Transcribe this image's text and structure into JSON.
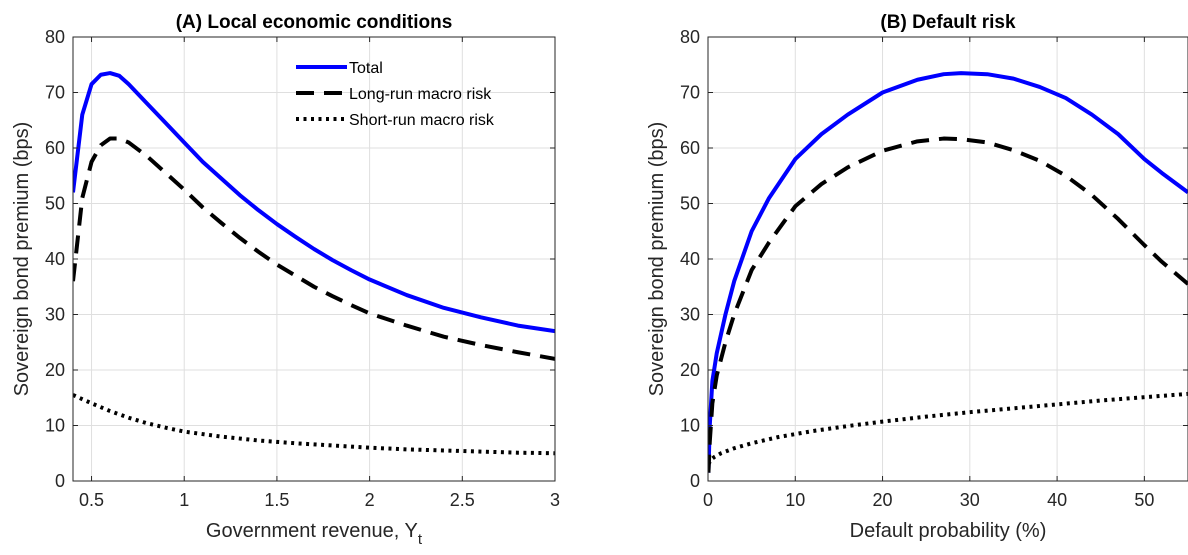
{
  "chart_data": [
    {
      "type": "line",
      "title": "(A) Local economic conditions",
      "xlabel": "Government revenue, Y",
      "xlabel_sub": "t",
      "ylabel": "Sovereign bond premium (bps)",
      "xlim": [
        0.4,
        3.0
      ],
      "ylim": [
        0,
        80
      ],
      "xticks": [
        0.5,
        1,
        1.5,
        2,
        2.5,
        3
      ],
      "xtick_labels": [
        "0.5",
        "1",
        "1.5",
        "2",
        "2.5",
        "3"
      ],
      "yticks": [
        0,
        10,
        20,
        30,
        40,
        50,
        60,
        70,
        80
      ],
      "ytick_labels": [
        "0",
        "10",
        "20",
        "30",
        "40",
        "50",
        "60",
        "70",
        "80"
      ],
      "grid": true,
      "legend": "top-right",
      "series": [
        {
          "name": "Total",
          "color": "#0000ff",
          "style": "solid",
          "x": [
            0.4,
            0.45,
            0.5,
            0.55,
            0.6,
            0.65,
            0.7,
            0.8,
            0.9,
            1.0,
            1.1,
            1.2,
            1.3,
            1.4,
            1.5,
            1.6,
            1.7,
            1.8,
            1.9,
            2.0,
            2.2,
            2.4,
            2.6,
            2.8,
            3.0
          ],
          "y": [
            52,
            66,
            71.5,
            73.2,
            73.5,
            73.0,
            71.5,
            68,
            64.5,
            61,
            57.5,
            54.5,
            51.5,
            48.8,
            46.3,
            44.0,
            41.8,
            39.8,
            38.0,
            36.3,
            33.5,
            31.2,
            29.5,
            28.0,
            27.0
          ]
        },
        {
          "name": "Long-run macro risk",
          "color": "#000000",
          "style": "dashed",
          "x": [
            0.4,
            0.45,
            0.5,
            0.55,
            0.6,
            0.65,
            0.7,
            0.8,
            0.9,
            1.0,
            1.1,
            1.2,
            1.3,
            1.4,
            1.5,
            1.6,
            1.7,
            1.8,
            1.9,
            2.0,
            2.2,
            2.4,
            2.6,
            2.8,
            3.0
          ],
          "y": [
            36,
            51,
            57.5,
            60.5,
            61.7,
            61.7,
            61.0,
            58.5,
            55.5,
            52.5,
            49.3,
            46.5,
            43.8,
            41.3,
            39.0,
            37.0,
            35.0,
            33.3,
            31.7,
            30.2,
            28.0,
            26.0,
            24.5,
            23.2,
            22.0
          ]
        },
        {
          "name": "Short-run macro risk",
          "color": "#000000",
          "style": "dotted",
          "x": [
            0.4,
            0.5,
            0.6,
            0.7,
            0.8,
            0.9,
            1.0,
            1.2,
            1.4,
            1.6,
            1.8,
            2.0,
            2.2,
            2.4,
            2.6,
            2.8,
            3.0
          ],
          "y": [
            15.5,
            14.0,
            12.6,
            11.4,
            10.4,
            9.6,
            8.9,
            8.0,
            7.3,
            6.8,
            6.4,
            6.0,
            5.7,
            5.5,
            5.3,
            5.1,
            5.0
          ]
        }
      ]
    },
    {
      "type": "line",
      "title": "(B) Default risk",
      "xlabel": "Default probability (%)",
      "ylabel": "Sovereign bond premium (bps)",
      "xlim": [
        0,
        55
      ],
      "ylim": [
        0,
        80
      ],
      "xticks": [
        0,
        10,
        20,
        30,
        40,
        50
      ],
      "xtick_labels": [
        "0",
        "10",
        "20",
        "30",
        "40",
        "50"
      ],
      "yticks": [
        0,
        10,
        20,
        30,
        40,
        50,
        60,
        70,
        80
      ],
      "ytick_labels": [
        "0",
        "10",
        "20",
        "30",
        "40",
        "50",
        "60",
        "70",
        "80"
      ],
      "grid": true,
      "series": [
        {
          "color": "#0000ff",
          "style": "solid",
          "x": [
            0.05,
            0.2,
            0.5,
            1,
            2,
            3,
            5,
            7,
            10,
            13,
            16,
            20,
            24,
            27,
            29,
            32,
            35,
            38,
            41,
            44,
            47,
            50,
            52,
            55
          ],
          "y": [
            1.5,
            10,
            18,
            23,
            30,
            36,
            45,
            51,
            58,
            62.5,
            66,
            70,
            72.3,
            73.3,
            73.5,
            73.3,
            72.5,
            71.0,
            69.0,
            66.0,
            62.5,
            58.0,
            55.5,
            52.0
          ]
        },
        {
          "color": "#000000",
          "style": "dashed",
          "x": [
            0.05,
            0.2,
            0.5,
            1,
            2,
            3,
            5,
            7,
            10,
            13,
            16,
            20,
            24,
            27,
            29,
            32,
            35,
            38,
            41,
            44,
            47,
            50,
            52,
            55
          ],
          "y": [
            1.5,
            7,
            14,
            19,
            25,
            30,
            38,
            43,
            49.5,
            53.5,
            56.5,
            59.5,
            61.2,
            61.7,
            61.6,
            61.0,
            59.6,
            57.7,
            55.0,
            51.5,
            47.2,
            42.5,
            39.5,
            35.5
          ]
        },
        {
          "color": "#000000",
          "style": "dotted",
          "x": [
            0.05,
            0.3,
            0.7,
            1.5,
            3,
            5,
            8,
            12,
            16,
            20,
            25,
            30,
            35,
            40,
            45,
            50,
            55
          ],
          "y": [
            3.0,
            3.8,
            4.3,
            5.0,
            5.9,
            6.8,
            7.9,
            9.0,
            9.9,
            10.7,
            11.6,
            12.4,
            13.1,
            13.8,
            14.5,
            15.1,
            15.7
          ]
        }
      ]
    }
  ]
}
